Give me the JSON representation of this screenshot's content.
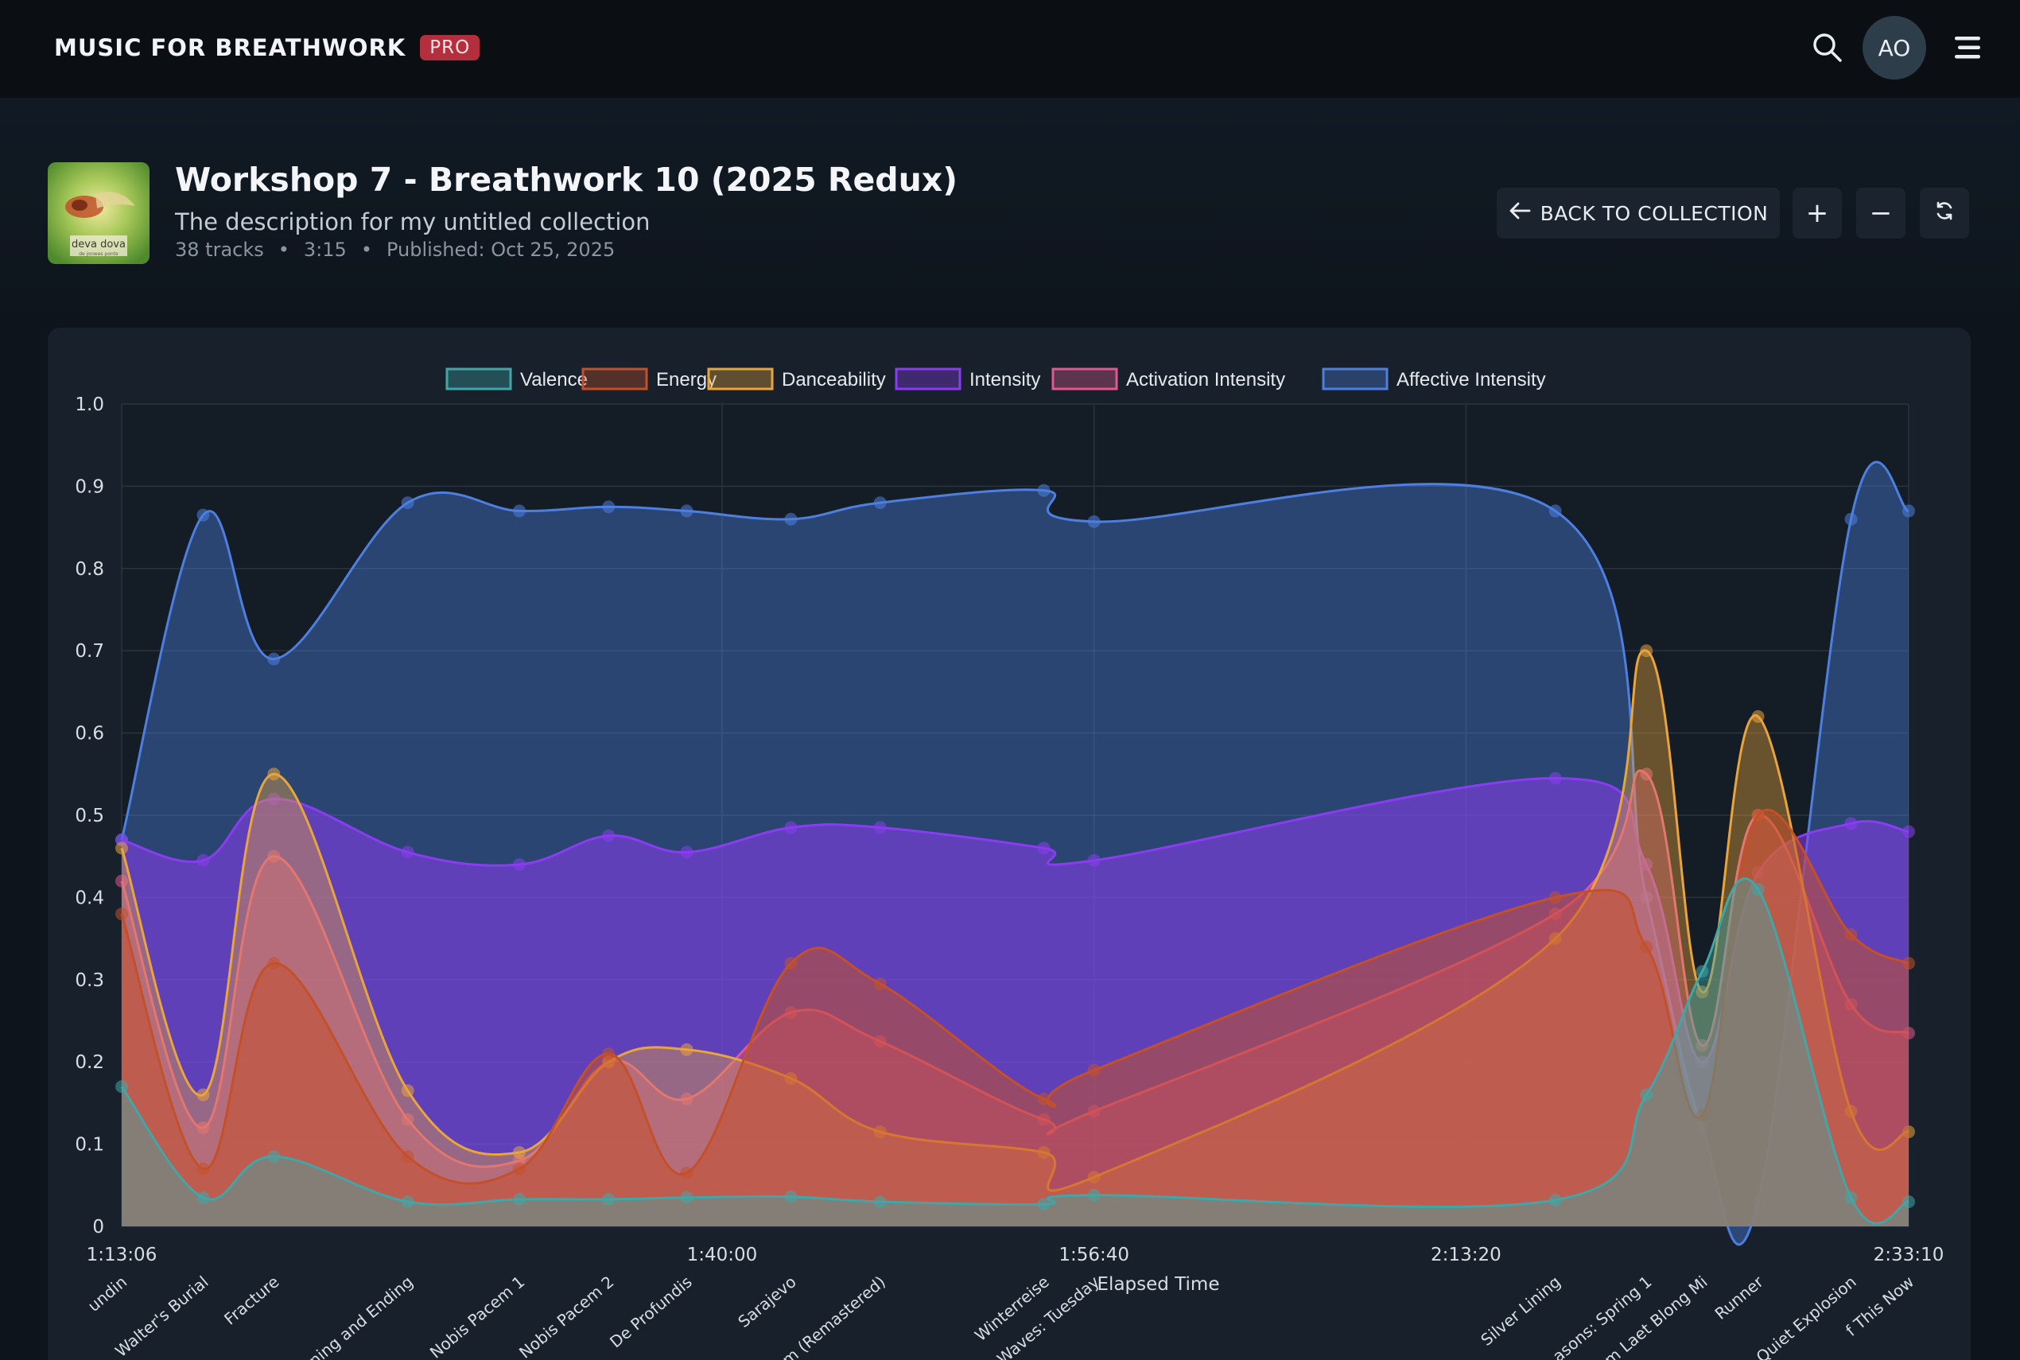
{
  "app": {
    "brand": "MUSIC FOR BREATHWORK",
    "badge": "PRO",
    "avatar_initials": "AO"
  },
  "icons": {
    "search": "search-icon",
    "menu": "hamburger-menu-icon",
    "back": "arrow-left-icon",
    "zoom_in": "plus-icon",
    "zoom_out": "minus-icon",
    "reset": "refresh-icon"
  },
  "collection": {
    "title": "Workshop 7 - Breathwork 10 (2025 Redux)",
    "description": "The description for my untitled collection",
    "tracks": "38 tracks",
    "duration": "3:15",
    "published": "Published: Oct 25, 2025",
    "separator": "•",
    "cover_text": "deva dova",
    "cover_subtext": "de jonwes ponte"
  },
  "actions": {
    "back_label": "BACK TO COLLECTION",
    "zoom_in": "+",
    "zoom_out": "−"
  },
  "colors": {
    "Valence": "#3fa7a7",
    "Energy": "#c4502a",
    "Danceability": "#e9a43c",
    "Intensity": "#8a3cf0",
    "Activation Intensity": "#e0588f",
    "Affective Intensity": "#4d7fe0"
  },
  "chart_data": {
    "type": "area",
    "xlabel": "Elapsed Time",
    "ylabel": "",
    "ylim": [
      0,
      1
    ],
    "yticks": [
      "0",
      "0.1",
      "0.2",
      "0.3",
      "0.4",
      "0.5",
      "0.6",
      "0.7",
      "0.8",
      "0.9",
      "1.0"
    ],
    "xticks": [
      "1:13:06",
      "1:40:00",
      "1:56:40",
      "2:13:20",
      "2:33:10"
    ],
    "x_range": [
      "1:13:06",
      "2:33:10"
    ],
    "legend_position": "top-center",
    "x": [
      "1:13:06",
      "1:16:45",
      "1:19:55",
      "1:25:55",
      "1:30:55",
      "1:34:55",
      "1:38:25",
      "1:43:05",
      "1:47:05",
      "1:54:25",
      "1:56:40",
      "2:17:20",
      "2:21:25",
      "2:23:55",
      "2:26:25",
      "2:30:35",
      "2:33:10"
    ],
    "track_labels": [
      "undin",
      "Walter's Burial",
      "Fracture",
      "ning and Ending",
      "Nobis Pacem 1",
      "Nobis Pacem 2",
      "De Profundis",
      "Sarajevo",
      "m (Remastered)",
      "Winterreise",
      "Waves: Tuesday",
      "Silver Lining",
      "asons: Spring 1",
      "m Laet Blong Mi",
      "Runner",
      "Quiet Explosion",
      "f This Now"
    ],
    "series": [
      {
        "name": "Valence",
        "values": [
          0.17,
          0.035,
          0.085,
          0.03,
          0.033,
          0.033,
          0.035,
          0.036,
          0.03,
          0.027,
          0.038,
          0.032,
          0.16,
          0.31,
          0.41,
          0.035,
          0.03
        ]
      },
      {
        "name": "Energy",
        "values": [
          0.38,
          0.07,
          0.32,
          0.085,
          0.07,
          0.21,
          0.065,
          0.32,
          0.295,
          0.155,
          0.19,
          0.4,
          0.34,
          0.135,
          0.5,
          0.355,
          0.32
        ]
      },
      {
        "name": "Danceability",
        "values": [
          0.46,
          0.16,
          0.55,
          0.165,
          0.09,
          0.2,
          0.215,
          0.18,
          0.115,
          0.09,
          0.06,
          0.35,
          0.7,
          0.285,
          0.62,
          0.14,
          0.115
        ]
      },
      {
        "name": "Intensity",
        "values": [
          0.47,
          0.445,
          0.52,
          0.455,
          0.44,
          0.475,
          0.455,
          0.485,
          0.485,
          0.46,
          0.445,
          0.545,
          0.44,
          0.2,
          0.43,
          0.49,
          0.48
        ]
      },
      {
        "name": "Activation Intensity",
        "values": [
          0.42,
          0.12,
          0.45,
          0.13,
          0.08,
          0.2,
          0.155,
          0.26,
          0.225,
          0.13,
          0.14,
          0.38,
          0.55,
          0.22,
          0.5,
          0.27,
          0.235
        ]
      },
      {
        "name": "Affective Intensity",
        "values": [
          0.47,
          0.865,
          0.69,
          0.88,
          0.87,
          0.875,
          0.87,
          0.86,
          0.88,
          0.895,
          0.857,
          0.87,
          0.4,
          0.12,
          0.03,
          0.86,
          0.87
        ]
      }
    ]
  }
}
